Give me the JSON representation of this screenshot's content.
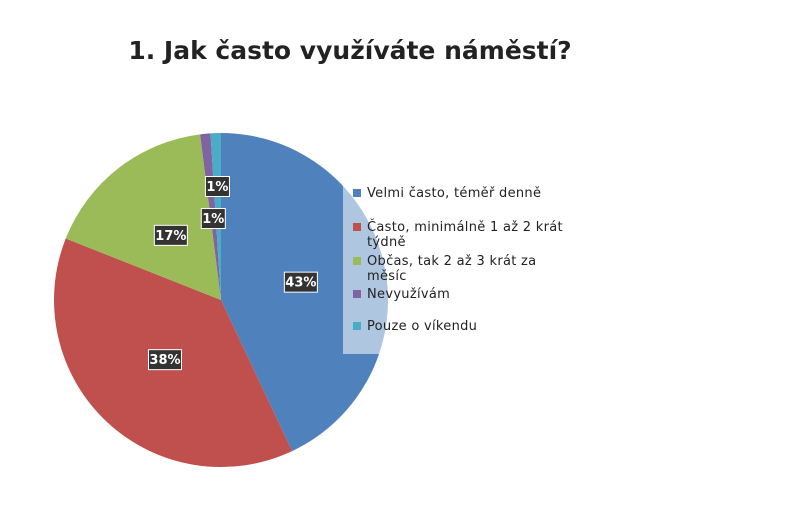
{
  "chart_data": {
    "type": "pie",
    "title": "1. Jak často využíváte náměstí?",
    "categories": [
      "Velmi často, téměř denně",
      "Často, minimálně 1 až 2 krát týdně",
      "Občas, tak 2 až 3 krát za měsíc",
      "Nevyužívám",
      "Pouze o víkendu"
    ],
    "values": [
      43,
      38,
      17,
      1,
      1
    ],
    "value_labels": [
      "43%",
      "38%",
      "17%",
      "1%",
      "1%"
    ],
    "colors": [
      "#4f81bd",
      "#c0504d",
      "#9bbb59",
      "#8064a2",
      "#4bacc6"
    ],
    "legend": "right"
  }
}
